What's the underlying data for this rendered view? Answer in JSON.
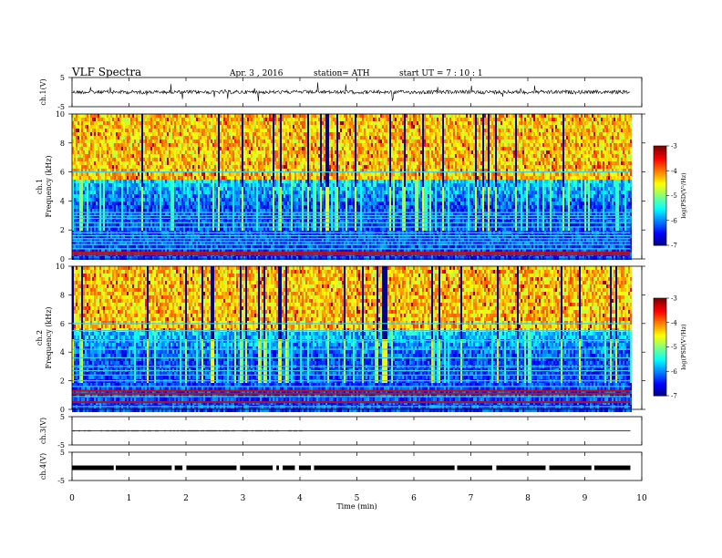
{
  "header": {
    "title": "VLF  Spectra",
    "date": "Apr. 3  , 2016",
    "station": "station= ATH",
    "start": "start  UT  =   7  : 10 : 1"
  },
  "chart_data": [
    {
      "type": "line",
      "panel": "ch1-waveform",
      "ylabel": "ch.1(V)",
      "y_ticks": [
        "5",
        "-5"
      ],
      "ylim": [
        -5,
        5
      ],
      "description_values": {
        "baseline_v": 0.0,
        "noise_band_v": 0.5
      },
      "color": "#000000"
    },
    {
      "type": "heatmap",
      "panel": "ch1-spectrogram",
      "ylabel": "ch.1\nFrequency (kHz)",
      "ylabel_line1": "ch.1",
      "ylabel_line2": "Frequency  (kHz)",
      "y_ticks": [
        "0",
        "2",
        "4",
        "6",
        "8",
        "10"
      ],
      "ylim": [
        0,
        10
      ],
      "colorbar": {
        "label": "log(PSD(V²/Hz)",
        "ticks": [
          "-3",
          "-4",
          "-5",
          "-6",
          "-7"
        ],
        "range": [
          -7,
          -3
        ]
      },
      "bands_khz": [
        0.3,
        0.45,
        0.7,
        1.0,
        1.2,
        1.4,
        1.6,
        1.8,
        2.2,
        2.5,
        2.8,
        3.0,
        3.2,
        6.0
      ],
      "strong_bands_khz": [
        0.3,
        0.45
      ]
    },
    {
      "type": "heatmap",
      "panel": "ch2-spectrogram",
      "ylabel_line1": "ch.2",
      "ylabel_line2": "Frequency  (kHz)",
      "y_ticks": [
        "0",
        "2",
        "4",
        "6",
        "8",
        "10"
      ],
      "ylim": [
        0,
        10
      ],
      "colorbar": {
        "label": "log(PSD(V²/Hz)",
        "ticks": [
          "-3",
          "-4",
          "-5",
          "-6",
          "-7"
        ],
        "range": [
          -7,
          -3
        ]
      },
      "bands_khz": [
        0.2,
        0.5,
        0.9,
        1.1,
        1.3,
        1.6,
        2.0,
        2.4,
        2.7,
        3.0,
        3.6,
        4.2,
        4.8,
        5.5,
        6.0
      ],
      "strong_bands_khz": [
        0.5,
        1.1,
        1.3
      ]
    },
    {
      "type": "line",
      "panel": "ch3-waveform",
      "ylabel": "ch.3(V)",
      "y_ticks": [
        "5",
        "-5"
      ],
      "ylim": [
        -5,
        5
      ],
      "description_values": {
        "baseline_v": 0.0
      }
    },
    {
      "type": "line",
      "panel": "ch4-waveform",
      "ylabel": "ch.4(V)",
      "y_ticks": [
        "5",
        "-5"
      ],
      "ylim": [
        -5,
        5
      ],
      "description_values": {
        "baseline_v": -0.5
      }
    }
  ],
  "x_axis": {
    "label": "Time  (min)",
    "ticks": [
      "0",
      "1",
      "2",
      "3",
      "4",
      "5",
      "6",
      "7",
      "8",
      "9",
      "10"
    ],
    "xlim": [
      0,
      10
    ],
    "data_end_min": 9.8
  }
}
